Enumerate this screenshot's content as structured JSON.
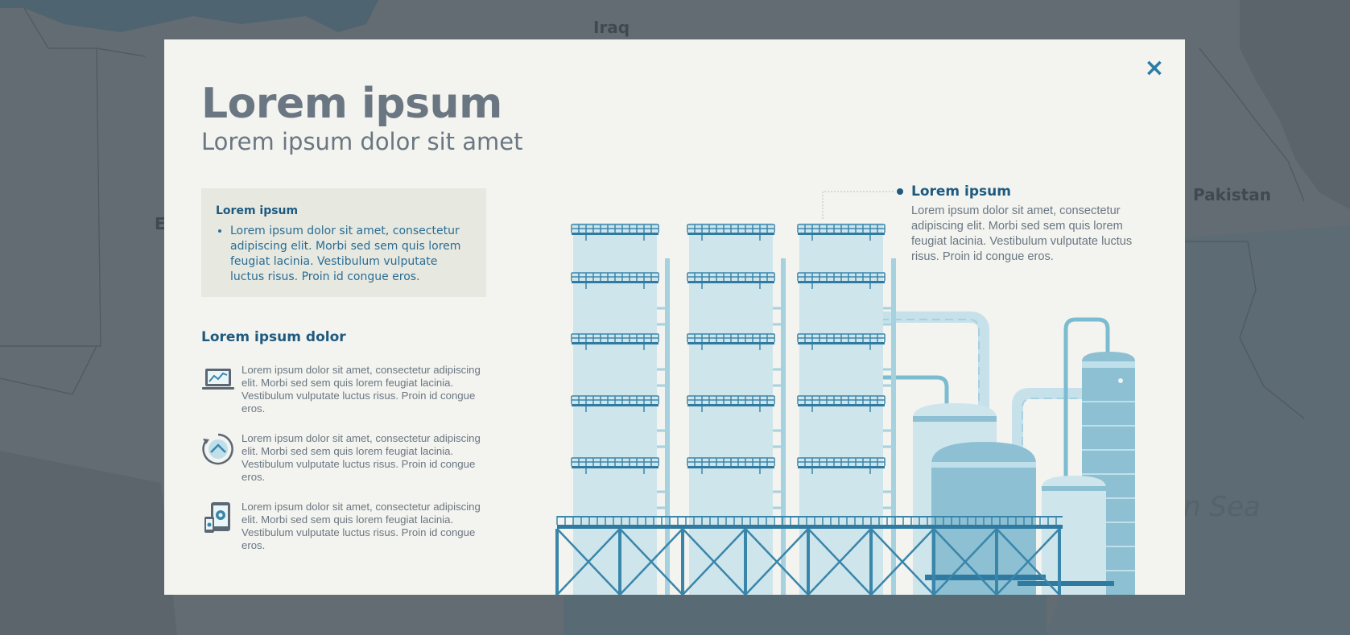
{
  "map": {
    "labels": [
      "Iraq",
      "Pakistan",
      "E"
    ],
    "sea_label": "n Sea"
  },
  "modal": {
    "close_icon": "×",
    "title": "Lorem ipsum",
    "subtitle": "Lorem ipsum dolor sit amet",
    "info_box": {
      "heading": "Lorem ipsum",
      "bullet": "Lorem ipsum dolor sit amet, consectetur adipiscing elit. Morbi sed sem quis lorem feugiat lacinia. Vestibulum vulputate luctus risus. Proin id congue eros."
    },
    "section_title": "Lorem ipsum dolor",
    "features": [
      {
        "icon": "laptop-chart-icon",
        "text": "Lorem ipsum dolor sit amet, consectetur adipiscing elit. Morbi sed sem quis lorem feugiat lacinia. Vestibulum vulputate luctus risus. Proin id congue eros."
      },
      {
        "icon": "gauge-refresh-icon",
        "text": "Lorem ipsum dolor sit amet, consectetur adipiscing elit. Morbi sed sem quis lorem feugiat lacinia. Vestibulum vulputate luctus risus. Proin id congue eros."
      },
      {
        "icon": "devices-settings-icon",
        "text": "Lorem ipsum dolor sit amet, consectetur adipiscing elit. Morbi sed sem quis lorem feugiat lacinia. Vestibulum vulputate luctus risus. Proin id congue eros."
      }
    ],
    "callout": {
      "title": "Lorem ipsum",
      "text": "Lorem ipsum dolor sit amet, consectetur adipiscing elit. Morbi sed sem quis lorem feugiat lacinia. Vestibulum vulputate luctus risus. Proin id congue eros."
    }
  },
  "colors": {
    "accent": "#2a7ca8",
    "dark_blue": "#1e5a80",
    "text_gray": "#6a7782",
    "modal_bg": "#f3f3ef",
    "overlay": "#5f6a70"
  }
}
